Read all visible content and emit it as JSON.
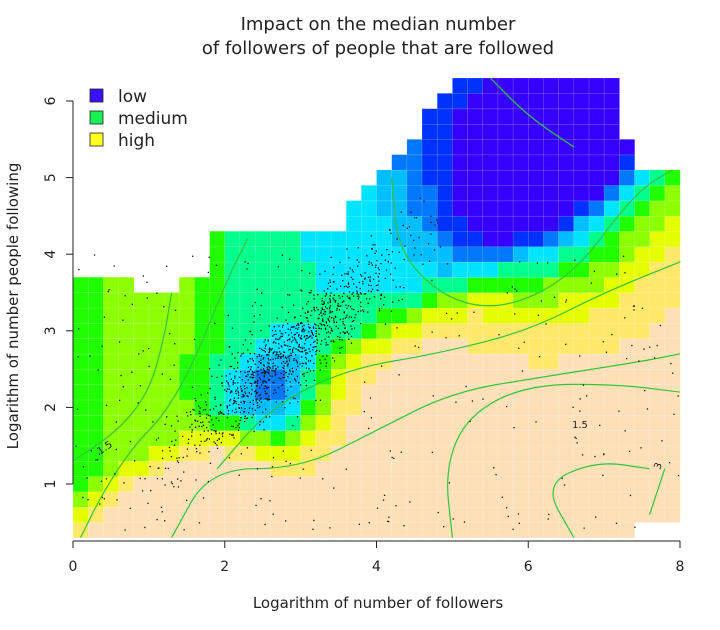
{
  "chart_data": {
    "type": "heatmap",
    "title_line1": "Impact on the median number",
    "title_line2": "of followers of people that are followed",
    "xlabel": "Logarithm of number of followers",
    "ylabel": "Logarithm of number people following",
    "xlim": [
      0,
      8
    ],
    "ylim": [
      0.3,
      6.4
    ],
    "xticks": [
      "0",
      "2",
      "4",
      "6",
      "8"
    ],
    "xtick_values": [
      0,
      2,
      4,
      6,
      8
    ],
    "yticks": [
      "1",
      "2",
      "3",
      "4",
      "5",
      "6"
    ],
    "ytick_values": [
      1,
      2,
      3,
      4,
      5,
      6
    ],
    "legend": [
      {
        "label": "low",
        "color": "#3b10ff"
      },
      {
        "label": "medium",
        "color": "#18f055"
      },
      {
        "label": "high",
        "color": "#ffff20"
      }
    ],
    "contour_labels": [
      "1.5",
      "1.5",
      "3"
    ],
    "cell_size": 0.2,
    "impact_scale_colors": [
      "#3500ff",
      "#0032ff",
      "#0078ff",
      "#00bfff",
      "#00e5ff",
      "#00ff8c",
      "#1fff00",
      "#8cff00",
      "#e6ff00",
      "#ffe86a",
      "#fde0b8"
    ],
    "point_cloud": {
      "center": [
        2.8,
        2.7
      ],
      "count": 1400
    }
  }
}
